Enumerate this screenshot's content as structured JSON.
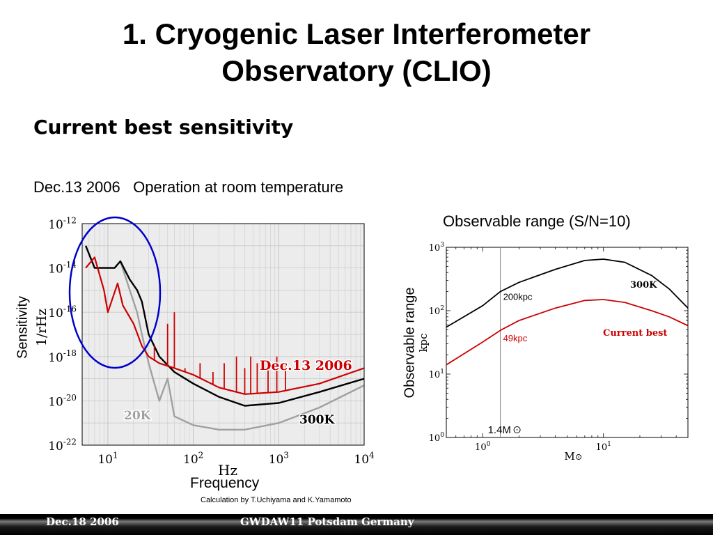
{
  "slide": {
    "title_line1": "1. Cryogenic Laser Interferometer",
    "title_line2": "Observatory (CLIO)",
    "subtitle": "Current best sensitivity",
    "dateline": "Dec.13 2006   Operation at room temperature",
    "observable_title": "Observable range (S/N=10)",
    "credit": "Calculation by T.Uchiyama and K.Yamamoto",
    "y_caption_left": "Sensitivity",
    "x_caption_left": "Frequency",
    "y_caption_right": "Observable range"
  },
  "footer": {
    "left": "Dec.18 2006",
    "center": "GWDAW11 Potsdam Germany"
  },
  "colors": {
    "red": "#cc0000",
    "black": "#000000",
    "gray": "#a0a0a0",
    "blue": "#0000cc"
  },
  "chart_data": [
    {
      "type": "line",
      "scale": {
        "x": "log",
        "y": "log"
      },
      "xlim": [
        5,
        10000
      ],
      "ylim": [
        1e-22,
        1e-12
      ],
      "ylabel": "1/rHz",
      "xlabel": "Hz",
      "xticks": [
        {
          "value": 10,
          "base": "10",
          "exp": "1"
        },
        {
          "value": 100,
          "base": "10",
          "exp": "2"
        },
        {
          "value": 1000,
          "base": "10",
          "exp": "3"
        },
        {
          "value": 10000,
          "base": "10",
          "exp": "4"
        }
      ],
      "yticks": [
        {
          "value": 1e-12,
          "base": "10",
          "exp": "-12"
        },
        {
          "value": 1e-14,
          "base": "10",
          "exp": "-14"
        },
        {
          "value": 1e-16,
          "base": "10",
          "exp": "-16"
        },
        {
          "value": 1e-18,
          "base": "10",
          "exp": "-18"
        },
        {
          "value": 1e-20,
          "base": "10",
          "exp": "-20"
        },
        {
          "value": 1e-22,
          "base": "10",
          "exp": "-22"
        }
      ],
      "grid": true,
      "annotations": {
        "red": "Dec.13 2006",
        "black": "300K",
        "gray": "20K"
      },
      "series": [
        {
          "name": "Dec.13 2006",
          "color": "#cc0000",
          "x": [
            5.5,
            7,
            9,
            10,
            13,
            15,
            20,
            25,
            30,
            40,
            60,
            100,
            200,
            400,
            1000,
            3000,
            10000
          ],
          "y": [
            1e-14,
            3e-14,
            1e-15,
            1e-16,
            2e-15,
            2e-16,
            3e-17,
            3e-18,
            1e-18,
            5e-19,
            3e-19,
            1.5e-19,
            4e-20,
            2e-20,
            2.5e-20,
            6e-20,
            3e-19
          ],
          "peaks": [
            {
              "x": 35,
              "y": 3e-18
            },
            {
              "x": 50,
              "y": 3e-17
            },
            {
              "x": 60,
              "y": 1e-16
            },
            {
              "x": 80,
              "y": 3e-19
            },
            {
              "x": 120,
              "y": 5e-19
            },
            {
              "x": 170,
              "y": 2e-19
            },
            {
              "x": 230,
              "y": 5e-19
            },
            {
              "x": 320,
              "y": 1e-18
            },
            {
              "x": 400,
              "y": 3e-19
            },
            {
              "x": 470,
              "y": 1e-18
            },
            {
              "x": 560,
              "y": 5e-19
            },
            {
              "x": 750,
              "y": 5e-19
            },
            {
              "x": 950,
              "y": 1e-18
            },
            {
              "x": 1200,
              "y": 5e-19
            }
          ]
        },
        {
          "name": "300K",
          "color": "#000000",
          "x": [
            5.5,
            7,
            9,
            12,
            14,
            18,
            22,
            25,
            30,
            40,
            60,
            100,
            200,
            400,
            1000,
            3000,
            10000
          ],
          "y": [
            1e-13,
            1e-14,
            1e-14,
            1e-14,
            2e-14,
            3e-15,
            1e-15,
            3e-16,
            1e-17,
            1e-18,
            2e-19,
            6e-20,
            1.5e-20,
            6e-21,
            8e-21,
            2.5e-20,
            1e-19
          ]
        },
        {
          "name": "20K",
          "color": "#a0a0a0",
          "x": [
            5.5,
            7,
            9,
            12,
            14,
            18,
            22,
            25,
            30,
            40,
            50,
            60,
            100,
            200,
            400,
            1000,
            3000,
            10000
          ],
          "y": [
            1e-13,
            1e-14,
            1e-14,
            1e-14,
            2e-14,
            1e-15,
            1e-16,
            1e-17,
            5e-19,
            1e-20,
            1e-19,
            2e-21,
            8e-22,
            5e-22,
            5e-22,
            1e-21,
            5e-21,
            5e-20
          ]
        }
      ]
    },
    {
      "type": "line",
      "scale": {
        "x": "log",
        "y": "log"
      },
      "xlim": [
        0.5,
        50
      ],
      "ylim": [
        1,
        1000
      ],
      "ylabel": "kpc",
      "xlabel": "M",
      "xticks": [
        {
          "value": 1,
          "base": "10",
          "exp": "0"
        },
        {
          "value": 10,
          "base": "10",
          "exp": "1"
        }
      ],
      "yticks": [
        {
          "value": 1,
          "base": "10",
          "exp": "0"
        },
        {
          "value": 10,
          "base": "10",
          "exp": "1"
        },
        {
          "value": 100,
          "base": "10",
          "exp": "2"
        },
        {
          "value": 1000,
          "base": "10",
          "exp": "3"
        }
      ],
      "grid": false,
      "vline": {
        "x": 1.4,
        "label": "1.4M"
      },
      "point_labels": [
        {
          "text": "200kpc",
          "x": 1.4,
          "y": 200
        },
        {
          "text": "49kpc",
          "x": 1.4,
          "y": 49
        }
      ],
      "series": [
        {
          "name": "300K",
          "color": "#000000",
          "x": [
            0.5,
            1,
            1.4,
            2,
            4,
            7,
            10,
            15,
            25,
            35,
            50
          ],
          "y": [
            55,
            120,
            200,
            280,
            450,
            620,
            650,
            580,
            360,
            220,
            110
          ]
        },
        {
          "name": "Current best",
          "color": "#cc0000",
          "x": [
            0.5,
            1,
            1.4,
            2,
            4,
            7,
            10,
            15,
            25,
            35,
            50
          ],
          "y": [
            14,
            32,
            49,
            70,
            110,
            145,
            150,
            135,
            100,
            80,
            58
          ]
        }
      ]
    }
  ]
}
